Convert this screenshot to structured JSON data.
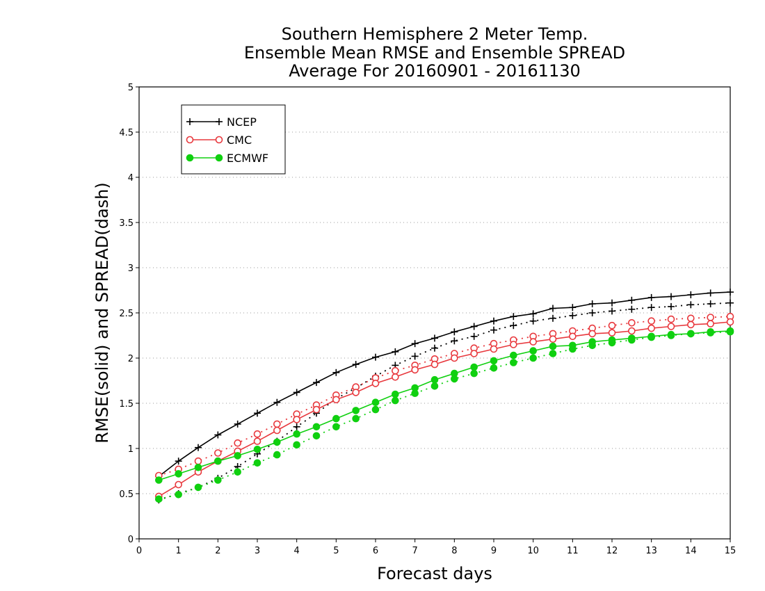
{
  "chart_data": {
    "type": "line",
    "title": [
      "Southern Hemisphere 2 Meter Temp.",
      "Ensemble Mean RMSE and Ensemble SPREAD",
      "Average For 20160901 - 20161130"
    ],
    "xlabel": "Forecast days",
    "ylabel": "RMSE(solid) and SPREAD(dash)",
    "xlim": [
      0,
      15
    ],
    "ylim": [
      0,
      5
    ],
    "xticks": [
      "0",
      "1",
      "2",
      "3",
      "4",
      "5",
      "6",
      "7",
      "8",
      "9",
      "10",
      "11",
      "12",
      "13",
      "14",
      "15"
    ],
    "yticks": [
      "0",
      "0.5",
      "1",
      "1.5",
      "2",
      "2.5",
      "3",
      "3.5",
      "4",
      "4.5",
      "5"
    ],
    "grid": "horizontal-dotted",
    "legend_position": "top-left",
    "x": [
      0.5,
      1,
      1.5,
      2,
      2.5,
      3,
      3.5,
      4,
      4.5,
      5,
      5.5,
      6,
      6.5,
      7,
      7.5,
      8,
      8.5,
      9,
      9.5,
      10,
      10.5,
      11,
      11.5,
      12,
      12.5,
      13,
      13.5,
      14,
      14.5,
      15
    ],
    "series": [
      {
        "name": "NCEP",
        "color": "#000000",
        "marker": "plus",
        "rmse": [
          0.69,
          0.86,
          1.01,
          1.15,
          1.27,
          1.39,
          1.51,
          1.62,
          1.73,
          1.84,
          1.93,
          2.01,
          2.07,
          2.16,
          2.22,
          2.29,
          2.35,
          2.41,
          2.46,
          2.49,
          2.55,
          2.56,
          2.6,
          2.61,
          2.64,
          2.67,
          2.68,
          2.7,
          2.72,
          2.73
        ],
        "spread": [
          0.43,
          0.5,
          0.57,
          0.67,
          0.8,
          0.94,
          1.08,
          1.24,
          1.39,
          1.55,
          1.67,
          1.8,
          1.92,
          2.02,
          2.11,
          2.19,
          2.24,
          2.31,
          2.36,
          2.41,
          2.44,
          2.47,
          2.5,
          2.52,
          2.54,
          2.56,
          2.57,
          2.59,
          2.6,
          2.61
        ]
      },
      {
        "name": "CMC",
        "color": "#e8383d",
        "marker": "open-circle",
        "rmse": [
          0.47,
          0.6,
          0.74,
          0.86,
          0.97,
          1.08,
          1.2,
          1.32,
          1.43,
          1.54,
          1.62,
          1.72,
          1.79,
          1.87,
          1.93,
          2.0,
          2.05,
          2.1,
          2.15,
          2.18,
          2.21,
          2.24,
          2.27,
          2.28,
          2.3,
          2.33,
          2.35,
          2.37,
          2.38,
          2.4
        ],
        "spread": [
          0.7,
          0.77,
          0.86,
          0.95,
          1.06,
          1.16,
          1.27,
          1.38,
          1.48,
          1.59,
          1.68,
          1.78,
          1.86,
          1.92,
          1.99,
          2.05,
          2.11,
          2.16,
          2.2,
          2.24,
          2.27,
          2.3,
          2.33,
          2.36,
          2.39,
          2.41,
          2.43,
          2.44,
          2.45,
          2.46
        ]
      },
      {
        "name": "ECMWF",
        "color": "#10d010",
        "marker": "filled-circle",
        "rmse": [
          0.65,
          0.72,
          0.79,
          0.86,
          0.92,
          0.99,
          1.07,
          1.16,
          1.24,
          1.33,
          1.42,
          1.51,
          1.6,
          1.67,
          1.76,
          1.83,
          1.9,
          1.97,
          2.03,
          2.08,
          2.13,
          2.14,
          2.18,
          2.2,
          2.22,
          2.24,
          2.26,
          2.27,
          2.29,
          2.3
        ],
        "spread": [
          0.44,
          0.49,
          0.57,
          0.65,
          0.74,
          0.84,
          0.93,
          1.04,
          1.14,
          1.24,
          1.33,
          1.43,
          1.53,
          1.61,
          1.69,
          1.77,
          1.83,
          1.89,
          1.95,
          2.0,
          2.05,
          2.1,
          2.14,
          2.17,
          2.2,
          2.23,
          2.25,
          2.27,
          2.28,
          2.29
        ]
      }
    ]
  }
}
